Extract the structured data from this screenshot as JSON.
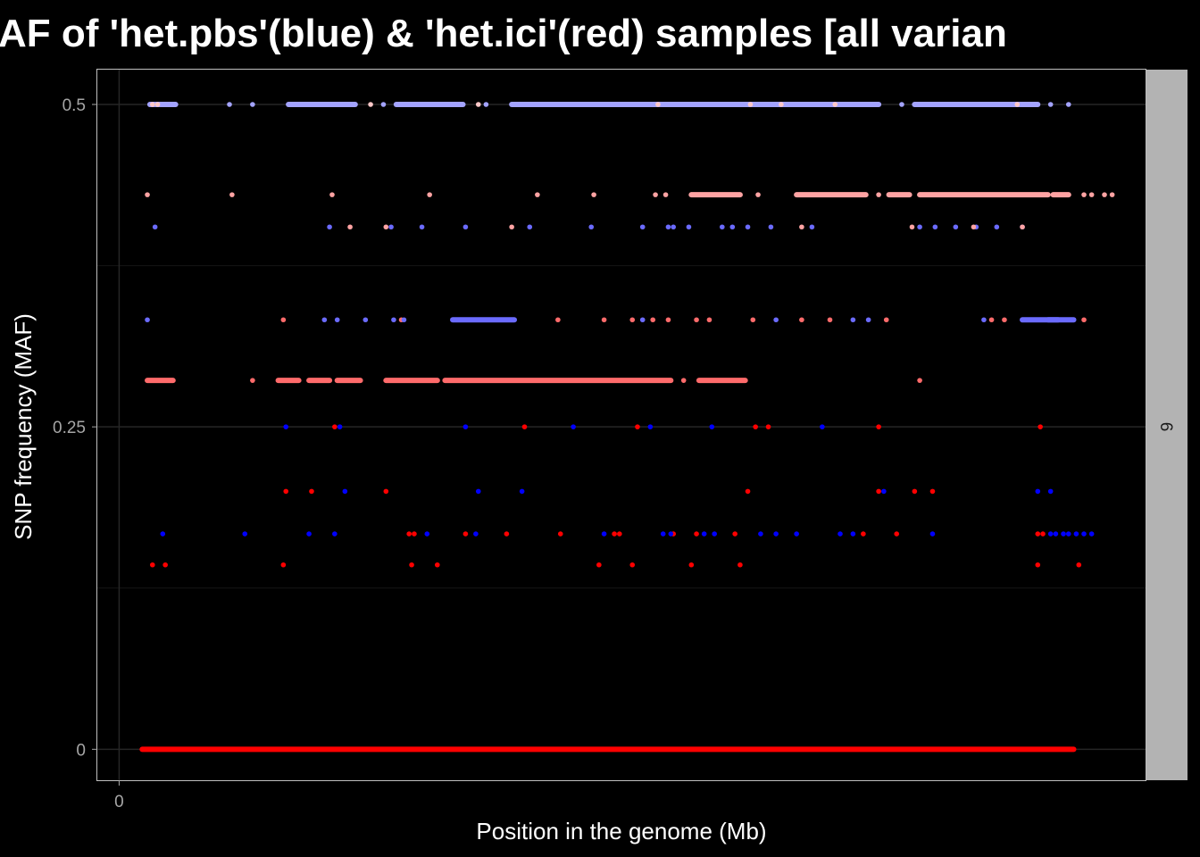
{
  "chart_data": {
    "type": "scatter",
    "title": "AF of 'het.pbs'(blue) & 'het.ici'(red) samples [all varian",
    "xlabel": "Position in the genome (Mb)",
    "ylabel": "SNP frequency (MAF)",
    "facet_label": "6",
    "xlim": [
      -0.85,
      40.0
    ],
    "ylim": [
      -0.024,
      0.527
    ],
    "x_ticks": [
      {
        "value": 0,
        "label": "0"
      }
    ],
    "y_ticks": [
      {
        "value": 0,
        "label": "0"
      },
      {
        "value": 0.25,
        "label": "0.25"
      },
      {
        "value": 0.5,
        "label": "0.5"
      }
    ],
    "grid": true,
    "colors": {
      "background": "#000000",
      "panel_border": "#bfbfbf",
      "grid_major": "#262626",
      "grid_minor": "#151515",
      "strip_fill": "#b3b3b3"
    },
    "series": [
      {
        "color": "#ff0000",
        "segments": [
          [
            0.9,
            37.2,
            0.0
          ]
        ],
        "points": [
          [
            1.3,
            0.143
          ],
          [
            1.8,
            0.143
          ],
          [
            6.4,
            0.143
          ],
          [
            11.4,
            0.143
          ],
          [
            12.4,
            0.143
          ],
          [
            18.7,
            0.143
          ],
          [
            20.0,
            0.143
          ],
          [
            22.3,
            0.143
          ],
          [
            24.2,
            0.143
          ],
          [
            35.8,
            0.143
          ],
          [
            37.4,
            0.143
          ],
          [
            6.5,
            0.2
          ],
          [
            7.5,
            0.2
          ],
          [
            10.4,
            0.2
          ],
          [
            24.5,
            0.2
          ],
          [
            29.6,
            0.2
          ],
          [
            31.0,
            0.2
          ],
          [
            31.7,
            0.2
          ],
          [
            11.3,
            0.167
          ],
          [
            11.5,
            0.167
          ],
          [
            13.5,
            0.167
          ],
          [
            15.1,
            0.167
          ],
          [
            17.2,
            0.167
          ],
          [
            19.3,
            0.167
          ],
          [
            19.5,
            0.167
          ],
          [
            21.6,
            0.167
          ],
          [
            22.5,
            0.167
          ],
          [
            24.0,
            0.167
          ],
          [
            29.0,
            0.167
          ],
          [
            30.3,
            0.167
          ],
          [
            35.8,
            0.167
          ],
          [
            36.0,
            0.167
          ],
          [
            8.4,
            0.25
          ],
          [
            15.8,
            0.25
          ],
          [
            20.2,
            0.25
          ],
          [
            24.8,
            0.25
          ],
          [
            25.3,
            0.25
          ],
          [
            29.6,
            0.25
          ],
          [
            35.9,
            0.25
          ]
        ]
      },
      {
        "color": "#0000ff",
        "points": [
          [
            6.5,
            0.25
          ],
          [
            8.6,
            0.25
          ],
          [
            13.5,
            0.25
          ],
          [
            17.7,
            0.25
          ],
          [
            20.7,
            0.25
          ],
          [
            23.1,
            0.25
          ],
          [
            27.4,
            0.25
          ],
          [
            1.7,
            0.167
          ],
          [
            4.9,
            0.167
          ],
          [
            7.4,
            0.167
          ],
          [
            8.4,
            0.167
          ],
          [
            12.0,
            0.167
          ],
          [
            13.9,
            0.167
          ],
          [
            18.9,
            0.167
          ],
          [
            21.2,
            0.167
          ],
          [
            21.5,
            0.167
          ],
          [
            22.8,
            0.167
          ],
          [
            23.2,
            0.167
          ],
          [
            25.0,
            0.167
          ],
          [
            25.6,
            0.167
          ],
          [
            26.4,
            0.167
          ],
          [
            28.1,
            0.167
          ],
          [
            28.6,
            0.167
          ],
          [
            31.7,
            0.167
          ],
          [
            36.3,
            0.167
          ],
          [
            36.5,
            0.167
          ],
          [
            36.8,
            0.167
          ],
          [
            37.0,
            0.167
          ],
          [
            37.3,
            0.167
          ],
          [
            37.6,
            0.167
          ],
          [
            37.9,
            0.167
          ],
          [
            8.8,
            0.2
          ],
          [
            14.0,
            0.2
          ],
          [
            15.7,
            0.2
          ],
          [
            29.8,
            0.2
          ],
          [
            35.8,
            0.2
          ],
          [
            36.3,
            0.2
          ]
        ]
      },
      {
        "color": "#ff6b6b",
        "segments": [
          [
            1.1,
            2.1,
            0.286
          ],
          [
            6.2,
            7.0,
            0.286
          ],
          [
            7.4,
            8.2,
            0.286
          ],
          [
            8.5,
            9.4,
            0.286
          ],
          [
            10.4,
            12.4,
            0.286
          ],
          [
            12.7,
            21.5,
            0.286
          ],
          [
            22.6,
            24.4,
            0.286
          ]
        ],
        "points": [
          [
            5.2,
            0.286
          ],
          [
            22.0,
            0.286
          ],
          [
            31.2,
            0.286
          ],
          [
            6.4,
            0.333
          ],
          [
            11.0,
            0.333
          ],
          [
            17.1,
            0.333
          ],
          [
            18.9,
            0.333
          ],
          [
            20.0,
            0.333
          ],
          [
            20.8,
            0.333
          ],
          [
            21.4,
            0.333
          ],
          [
            22.5,
            0.333
          ],
          [
            23.0,
            0.333
          ],
          [
            24.7,
            0.333
          ],
          [
            26.6,
            0.333
          ],
          [
            27.7,
            0.333
          ],
          [
            29.9,
            0.333
          ],
          [
            34.0,
            0.333
          ],
          [
            34.5,
            0.333
          ],
          [
            37.6,
            0.333
          ]
        ]
      },
      {
        "color": "#6b6bff",
        "segments": [
          [
            13.0,
            15.4,
            0.333
          ],
          [
            36.2,
            37.2,
            0.333
          ],
          [
            35.2,
            36.6,
            0.333
          ]
        ],
        "points": [
          [
            1.1,
            0.333
          ],
          [
            8.0,
            0.333
          ],
          [
            8.5,
            0.333
          ],
          [
            9.6,
            0.333
          ],
          [
            10.7,
            0.333
          ],
          [
            11.1,
            0.333
          ],
          [
            20.4,
            0.333
          ],
          [
            25.6,
            0.333
          ],
          [
            28.6,
            0.333
          ],
          [
            29.2,
            0.333
          ],
          [
            33.7,
            0.333
          ],
          [
            1.4,
            0.405
          ],
          [
            8.2,
            0.405
          ],
          [
            10.6,
            0.405
          ],
          [
            11.8,
            0.405
          ],
          [
            13.5,
            0.405
          ],
          [
            16.0,
            0.405
          ],
          [
            18.4,
            0.405
          ],
          [
            20.4,
            0.405
          ],
          [
            21.4,
            0.405
          ],
          [
            21.6,
            0.405
          ],
          [
            22.2,
            0.405
          ],
          [
            23.5,
            0.405
          ],
          [
            23.9,
            0.405
          ],
          [
            24.5,
            0.405
          ],
          [
            25.4,
            0.405
          ],
          [
            27.0,
            0.405
          ],
          [
            31.2,
            0.405
          ],
          [
            31.8,
            0.405
          ],
          [
            32.6,
            0.405
          ],
          [
            33.4,
            0.405
          ],
          [
            34.2,
            0.405
          ],
          [
            35.2,
            0.405
          ]
        ]
      },
      {
        "color": "#ffa3a3",
        "segments": [
          [
            22.3,
            24.2,
            0.43
          ],
          [
            26.4,
            29.1,
            0.43
          ],
          [
            30.0,
            30.8,
            0.43
          ],
          [
            31.2,
            36.2,
            0.43
          ],
          [
            36.4,
            37.0,
            0.43
          ]
        ],
        "points": [
          [
            1.1,
            0.43
          ],
          [
            4.4,
            0.43
          ],
          [
            8.3,
            0.43
          ],
          [
            12.1,
            0.43
          ],
          [
            16.3,
            0.43
          ],
          [
            18.5,
            0.43
          ],
          [
            20.9,
            0.43
          ],
          [
            21.3,
            0.43
          ],
          [
            24.9,
            0.43
          ],
          [
            29.6,
            0.43
          ],
          [
            37.6,
            0.43
          ],
          [
            37.9,
            0.43
          ],
          [
            38.4,
            0.43
          ],
          [
            38.7,
            0.43
          ],
          [
            9.0,
            0.405
          ],
          [
            10.4,
            0.405
          ],
          [
            15.3,
            0.405
          ],
          [
            26.6,
            0.405
          ],
          [
            30.9,
            0.405
          ],
          [
            33.3,
            0.405
          ],
          [
            35.2,
            0.405
          ]
        ]
      },
      {
        "color": "#a3a3ff",
        "segments": [
          [
            1.2,
            2.2,
            0.5
          ],
          [
            6.6,
            9.2,
            0.5
          ],
          [
            10.8,
            13.4,
            0.5
          ],
          [
            15.3,
            29.6,
            0.5
          ],
          [
            31.0,
            35.8,
            0.5
          ]
        ],
        "points": [
          [
            4.3,
            0.5
          ],
          [
            5.2,
            0.5
          ],
          [
            10.3,
            0.5
          ],
          [
            13.1,
            0.5
          ],
          [
            14.3,
            0.5
          ],
          [
            30.5,
            0.5
          ],
          [
            36.3,
            0.5
          ],
          [
            37.0,
            0.5
          ]
        ]
      },
      {
        "color": "#ffc8c8",
        "points": [
          [
            1.3,
            0.5
          ],
          [
            1.5,
            0.5
          ],
          [
            9.8,
            0.5
          ],
          [
            21.0,
            0.5
          ],
          [
            24.6,
            0.5
          ],
          [
            25.8,
            0.5
          ],
          [
            27.9,
            0.5
          ],
          [
            35.0,
            0.5
          ],
          [
            14.0,
            0.5
          ]
        ]
      }
    ]
  }
}
